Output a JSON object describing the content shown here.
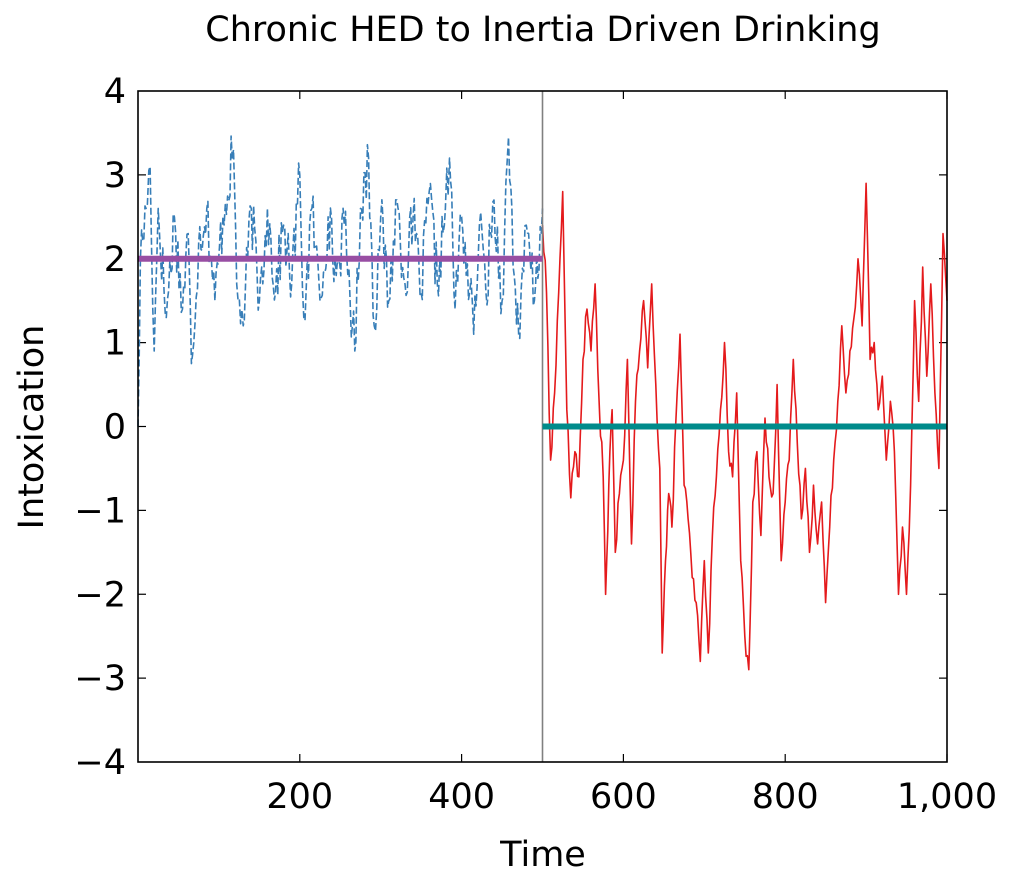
{
  "chart_data": {
    "type": "line",
    "title": "Chronic HED to Inertia Driven Drinking",
    "xlabel": "Time",
    "ylabel": "Intoxication",
    "xlim": [
      0,
      1000
    ],
    "ylim": [
      -4,
      4
    ],
    "x_ticks": [
      200,
      400,
      600,
      800,
      1000
    ],
    "x_tick_labels": [
      "200",
      "400",
      "600",
      "800",
      "1,000"
    ],
    "y_ticks": [
      -4,
      -3,
      -2,
      -1,
      0,
      1,
      2,
      3,
      4
    ],
    "y_tick_labels": [
      "−4",
      "−3",
      "−2",
      "−1",
      "0",
      "1",
      "2",
      "3",
      "4"
    ],
    "grid": false,
    "legend": "none",
    "vertical_line": {
      "x": 500,
      "color": "#808080"
    },
    "series": [
      {
        "style": "dashed",
        "color": "#377eb8",
        "x_range": [
          0,
          500
        ],
        "mean": 2,
        "points": [
          [
            0,
            0
          ],
          [
            3,
            2.0
          ],
          [
            10,
            2.6
          ],
          [
            15,
            3.1
          ],
          [
            20,
            0.9
          ],
          [
            25,
            2.6
          ],
          [
            35,
            1.3
          ],
          [
            45,
            2.5
          ],
          [
            55,
            1.4
          ],
          [
            62,
            2.3
          ],
          [
            66,
            0.75
          ],
          [
            75,
            2.2
          ],
          [
            85,
            2.6
          ],
          [
            95,
            1.5
          ],
          [
            105,
            2.5
          ],
          [
            118,
            3.3
          ],
          [
            122,
            1.7
          ],
          [
            130,
            1.2
          ],
          [
            140,
            2.6
          ],
          [
            150,
            1.5
          ],
          [
            160,
            2.6
          ],
          [
            170,
            1.6
          ],
          [
            180,
            2.4
          ],
          [
            190,
            1.7
          ],
          [
            200,
            3.0
          ],
          [
            205,
            1.3
          ],
          [
            215,
            2.6
          ],
          [
            225,
            1.5
          ],
          [
            235,
            2.5
          ],
          [
            245,
            1.8
          ],
          [
            255,
            2.4
          ],
          [
            268,
            0.9
          ],
          [
            275,
            2.6
          ],
          [
            285,
            3.2
          ],
          [
            292,
            1.2
          ],
          [
            300,
            2.5
          ],
          [
            310,
            1.5
          ],
          [
            320,
            2.7
          ],
          [
            330,
            1.7
          ],
          [
            340,
            2.5
          ],
          [
            350,
            1.6
          ],
          [
            360,
            2.8
          ],
          [
            370,
            1.7
          ],
          [
            380,
            2.6
          ],
          [
            385,
            3.2
          ],
          [
            392,
            1.4
          ],
          [
            400,
            2.5
          ],
          [
            410,
            1.6
          ],
          [
            415,
            1.1
          ],
          [
            422,
            2.4
          ],
          [
            430,
            1.6
          ],
          [
            440,
            2.7
          ],
          [
            450,
            1.5
          ],
          [
            458,
            3.45
          ],
          [
            465,
            1.8
          ],
          [
            472,
            1.05
          ],
          [
            480,
            2.4
          ],
          [
            490,
            1.5
          ],
          [
            500,
            2.6
          ]
        ]
      },
      {
        "style": "solid",
        "color": "#e41a1c",
        "x_range": [
          500,
          1000
        ],
        "mean": 0,
        "points": [
          [
            500,
            2.4
          ],
          [
            505,
            1.6
          ],
          [
            510,
            -0.4
          ],
          [
            515,
            0.4
          ],
          [
            520,
            1.6
          ],
          [
            525,
            2.8
          ],
          [
            530,
            0.2
          ],
          [
            535,
            -0.85
          ],
          [
            540,
            -0.3
          ],
          [
            545,
            -0.6
          ],
          [
            550,
            0.8
          ],
          [
            555,
            1.4
          ],
          [
            560,
            0.9
          ],
          [
            565,
            1.7
          ],
          [
            570,
            0.3
          ],
          [
            575,
            -0.6
          ],
          [
            578,
            -2.0
          ],
          [
            582,
            -0.7
          ],
          [
            586,
            0.2
          ],
          [
            590,
            -1.5
          ],
          [
            595,
            -0.8
          ],
          [
            600,
            -0.4
          ],
          [
            605,
            0.8
          ],
          [
            610,
            -1.4
          ],
          [
            615,
            0.3
          ],
          [
            620,
            0.9
          ],
          [
            625,
            1.5
          ],
          [
            630,
            0.7
          ],
          [
            635,
            1.7
          ],
          [
            640,
            0.5
          ],
          [
            645,
            -0.5
          ],
          [
            648,
            -2.7
          ],
          [
            652,
            -1.6
          ],
          [
            656,
            -0.8
          ],
          [
            660,
            -1.2
          ],
          [
            665,
            0.1
          ],
          [
            670,
            1.1
          ],
          [
            675,
            -0.7
          ],
          [
            680,
            -1.1
          ],
          [
            685,
            -1.8
          ],
          [
            690,
            -2.1
          ],
          [
            695,
            -2.8
          ],
          [
            700,
            -1.6
          ],
          [
            705,
            -2.7
          ],
          [
            710,
            -1.3
          ],
          [
            715,
            -0.6
          ],
          [
            720,
            0.2
          ],
          [
            725,
            1.0
          ],
          [
            730,
            -0.3
          ],
          [
            735,
            -0.6
          ],
          [
            740,
            0.4
          ],
          [
            745,
            -1.6
          ],
          [
            750,
            -2.5
          ],
          [
            755,
            -2.9
          ],
          [
            760,
            -0.9
          ],
          [
            765,
            -0.3
          ],
          [
            770,
            -1.3
          ],
          [
            775,
            0.1
          ],
          [
            780,
            -0.6
          ],
          [
            785,
            -0.8
          ],
          [
            790,
            0.5
          ],
          [
            795,
            -1.6
          ],
          [
            800,
            -0.9
          ],
          [
            805,
            -0.4
          ],
          [
            810,
            0.8
          ],
          [
            815,
            -0.2
          ],
          [
            820,
            -1.1
          ],
          [
            825,
            -0.5
          ],
          [
            830,
            -1.5
          ],
          [
            835,
            -0.7
          ],
          [
            840,
            -1.4
          ],
          [
            845,
            -0.9
          ],
          [
            850,
            -2.1
          ],
          [
            855,
            -1.2
          ],
          [
            860,
            -0.4
          ],
          [
            865,
            0.3
          ],
          [
            870,
            1.2
          ],
          [
            875,
            0.4
          ],
          [
            880,
            0.9
          ],
          [
            885,
            1.3
          ],
          [
            890,
            2.0
          ],
          [
            895,
            1.2
          ],
          [
            900,
            2.9
          ],
          [
            905,
            0.8
          ],
          [
            910,
            1.0
          ],
          [
            915,
            0.2
          ],
          [
            920,
            0.6
          ],
          [
            925,
            -0.4
          ],
          [
            930,
            0.3
          ],
          [
            935,
            -0.3
          ],
          [
            940,
            -2.0
          ],
          [
            945,
            -1.2
          ],
          [
            950,
            -2.0
          ],
          [
            955,
            -0.7
          ],
          [
            960,
            1.5
          ],
          [
            965,
            0.3
          ],
          [
            970,
            1.9
          ],
          [
            975,
            0.6
          ],
          [
            980,
            1.7
          ],
          [
            985,
            0.4
          ],
          [
            990,
            -0.5
          ],
          [
            995,
            2.3
          ],
          [
            1000,
            1.5
          ]
        ]
      },
      {
        "style": "solid",
        "color": "#984ea3",
        "x": [
          0,
          500
        ],
        "values": [
          2,
          2
        ]
      },
      {
        "style": "solid",
        "color": "#008b8b",
        "x": [
          500,
          1000
        ],
        "values": [
          0,
          0
        ]
      }
    ]
  }
}
